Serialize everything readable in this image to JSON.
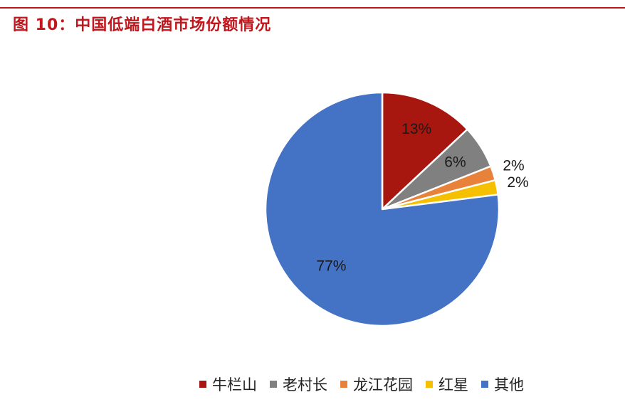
{
  "figure": {
    "title": "图 10：中国低端白酒市场份额情况"
  },
  "chart_data": {
    "type": "pie",
    "title": "",
    "start_angle_deg": 0,
    "direction": "clockwise",
    "slices": [
      {
        "name": "牛栏山",
        "value": 13,
        "label": "13%",
        "color": "#a8170f"
      },
      {
        "name": "老村长",
        "value": 6,
        "label": "6%",
        "color": "#808080"
      },
      {
        "name": "龙江花园",
        "value": 2,
        "label": "2%",
        "color": "#e8823a"
      },
      {
        "name": "红星",
        "value": 2,
        "label": "2%",
        "color": "#f5c000"
      },
      {
        "name": "其他",
        "value": 77,
        "label": "77%",
        "color": "#4472c4"
      }
    ],
    "legend_position": "bottom"
  }
}
